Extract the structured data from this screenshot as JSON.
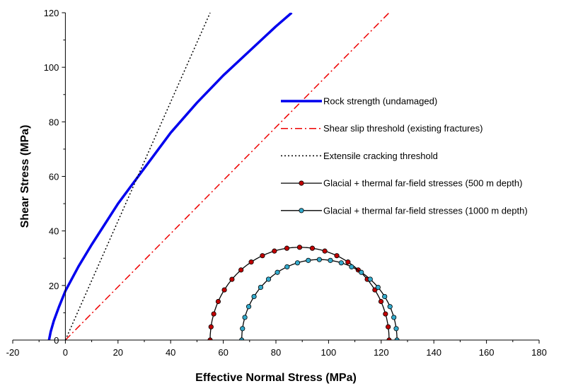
{
  "chart_data": {
    "type": "scatter",
    "title": "",
    "xlabel": "Effective Normal Stress (MPa)",
    "ylabel": "Shear Stress (MPa)",
    "xlim": [
      -20,
      180
    ],
    "ylim": [
      0,
      120
    ],
    "x_ticks": [
      -20,
      0,
      20,
      40,
      60,
      80,
      100,
      120,
      140,
      160,
      180
    ],
    "y_ticks": [
      0,
      20,
      40,
      60,
      80,
      100,
      120
    ],
    "grid": false,
    "legend_placement": "right",
    "series": [
      {
        "name": "Rock strength (undamaged)",
        "style": "solid-thick",
        "color": "#0000ee",
        "points": [
          [
            -6.2,
            0
          ],
          [
            -5.6,
            3
          ],
          [
            -4.4,
            7
          ],
          [
            -2.5,
            12
          ],
          [
            0,
            18
          ],
          [
            5,
            27
          ],
          [
            10,
            35
          ],
          [
            20,
            50
          ],
          [
            30,
            63
          ],
          [
            40,
            76
          ],
          [
            50,
            87
          ],
          [
            60,
            97
          ],
          [
            70,
            106
          ],
          [
            80,
            115
          ],
          [
            86,
            120
          ]
        ]
      },
      {
        "name": "Shear slip threshold (existing fractures)",
        "style": "dash-dot",
        "color": "#ee0000",
        "points": [
          [
            0,
            0
          ],
          [
            123,
            120
          ]
        ]
      },
      {
        "name": "Extensile cracking threshold",
        "style": "dotted",
        "color": "#000000",
        "points": [
          [
            0,
            0
          ],
          [
            55,
            120
          ]
        ]
      },
      {
        "name": "Glacial + thermal far-field stresses (500 m depth)",
        "style": "circle-markers",
        "line_color": "#000000",
        "marker_color": "#c00000",
        "center": 89,
        "radius": 34
      },
      {
        "name": "Glacial + thermal far-field stresses (1000 m depth)",
        "style": "circle-markers",
        "line_color": "#000000",
        "marker_color": "#33aacc",
        "center": 96.5,
        "radius": 29.5
      }
    ]
  }
}
